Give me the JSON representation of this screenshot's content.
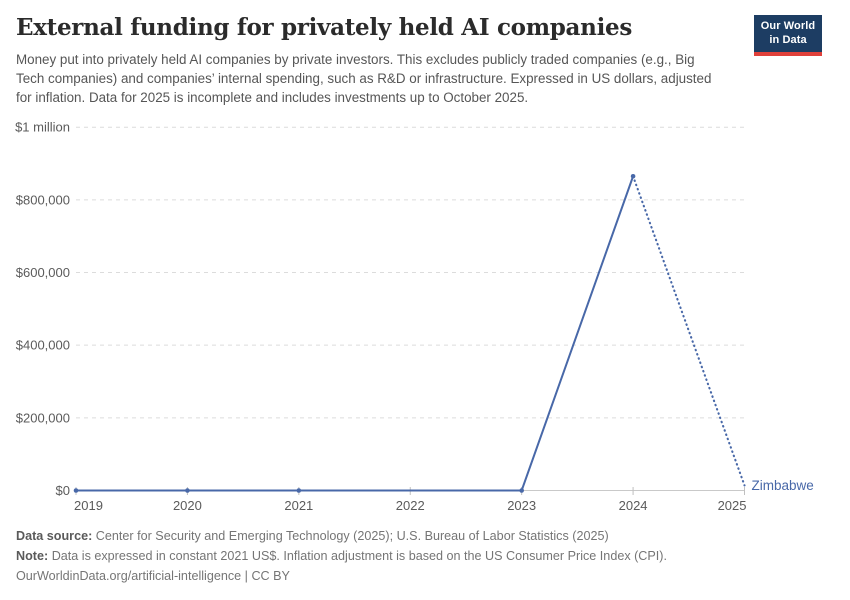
{
  "header": {
    "title": "External funding for privately held AI companies",
    "subtitle": "Money put into privately held AI companies by private investors. This excludes publicly traded companies (e.g., Big Tech companies) and companies’ internal spending, such as R&D or infrastructure. Expressed in US dollars, adjusted for inflation. Data for 2025 is incomplete and includes investments up to October 2025.",
    "logo": {
      "line1": "Our World",
      "line2": "in Data"
    }
  },
  "chart_data": {
    "type": "line",
    "title": "External funding for privately held AI companies",
    "x": [
      2019,
      2020,
      2021,
      2023,
      2024,
      2025
    ],
    "series": [
      {
        "name": "Zimbabwe",
        "values": [
          0,
          0,
          0,
          0,
          865000,
          14000
        ]
      }
    ],
    "xlim": [
      2019,
      2025
    ],
    "ylim": [
      0,
      1000000
    ],
    "xtick_labels": [
      "2019",
      "2020",
      "2021",
      "2022",
      "2023",
      "2024",
      "2025"
    ],
    "ytick_values": [
      0,
      200000,
      400000,
      600000,
      800000,
      1000000
    ],
    "ytick_labels": [
      "$0",
      "$200,000",
      "$400,000",
      "$600,000",
      "$800,000",
      "$1 million"
    ],
    "grid": true,
    "legend_position": "end-of-line",
    "markers_on_years": [
      2019,
      2020,
      2021,
      2023,
      2024
    ],
    "dotted_final_segment": true,
    "dotted_reason": "2025 data incomplete (investments up to October 2025)"
  },
  "footer": {
    "sources_label": "Data source:",
    "sources_text": "Center for Security and Emerging Technology (2025); U.S. Bureau of Labor Statistics (2025)",
    "note_label": "Note:",
    "note_text": "Data is expressed in constant 2021 US$. Inflation adjustment is based on the US Consumer Price Index (CPI).",
    "url": "OurWorldinData.org/artificial-intelligence",
    "separator": "|",
    "license": "CC BY"
  },
  "colors": {
    "line": "#4868a8",
    "entity_label": "#4868a8",
    "logo_bg": "#1d3d63",
    "logo_stripe": "#e0403a",
    "title_text": "#2b2b2b",
    "subtitle_text": "#565656",
    "axis_text": "#5b5b5b",
    "footer_text": "#757575"
  }
}
